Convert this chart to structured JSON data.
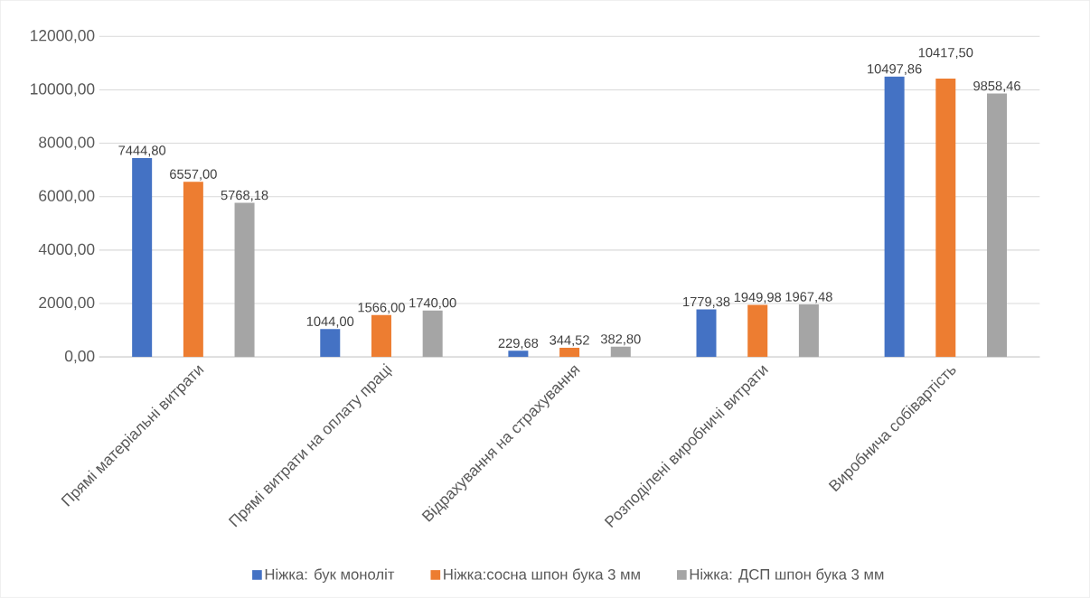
{
  "chart_data": {
    "type": "bar",
    "categories": [
      "Прямі матеріальні витрати",
      "Прямі витрати на оплату праці",
      "Відрахування на  страхування",
      "Розподілені виробничі витрати",
      "Виробнича собівартість"
    ],
    "series": [
      {
        "name": "Ніжка: бук моноліт",
        "color": "#4472c4",
        "values": [
          7444.8,
          1044.0,
          229.68,
          1779.38,
          10497.86
        ],
        "value_labels": [
          "7444,80",
          "1044,00",
          "229,68",
          "1779,38",
          "10497,86"
        ]
      },
      {
        "name": "Ніжка:сосна шпон бука 3 мм",
        "color": "#ed7d31",
        "values": [
          6557.0,
          1566.0,
          344.52,
          1949.98,
          10417.5
        ],
        "value_labels": [
          "6557,00",
          "1566,00",
          "344,52",
          "1949,98",
          "10417,50"
        ]
      },
      {
        "name": "Ніжка: ДСП шпон бука 3 мм",
        "color": "#a5a5a5",
        "values": [
          5768.18,
          1740.0,
          382.8,
          1967.48,
          9858.46
        ],
        "value_labels": [
          "5768,18",
          "1740,00",
          "382,80",
          "1967,48",
          "9858,46"
        ]
      }
    ],
    "ylim": [
      0,
      12000
    ],
    "yticks": [
      {
        "value": 0,
        "label": "0,00"
      },
      {
        "value": 2000,
        "label": "2000,00"
      },
      {
        "value": 4000,
        "label": "4000,00"
      },
      {
        "value": 6000,
        "label": "6000,00"
      },
      {
        "value": 8000,
        "label": "8000,00"
      },
      {
        "value": 10000,
        "label": "10000,00"
      },
      {
        "value": 12000,
        "label": "12000,00"
      }
    ],
    "grid": "y",
    "legend": "bottom"
  }
}
